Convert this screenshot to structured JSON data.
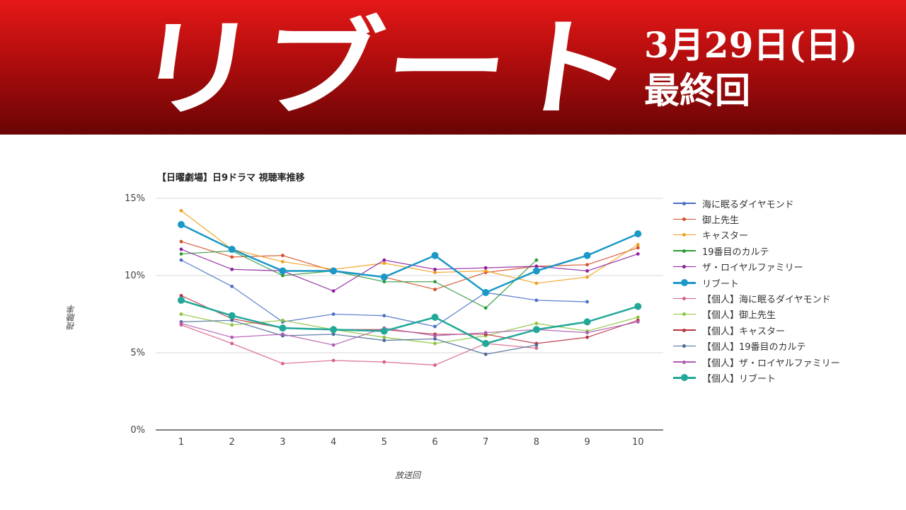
{
  "banner": {
    "title": "リブート",
    "date": "3月29日(日)",
    "subtitle": "最終回"
  },
  "chart_data": {
    "type": "line",
    "title": "【日曜劇場】日9ドラマ 視聴率推移",
    "xlabel": "放送回",
    "ylabel": "視聴率",
    "x": [
      1,
      2,
      3,
      4,
      5,
      6,
      7,
      8,
      9,
      10
    ],
    "ylim": [
      0,
      15
    ],
    "yticks": [
      "0%",
      "5%",
      "10%",
      "15%"
    ],
    "grid": true,
    "legend_position": "right",
    "series": [
      {
        "name": "海に眠るダイヤモンド",
        "color": "#4a6fc4",
        "marker": "small",
        "values": [
          11.0,
          9.3,
          7.0,
          7.5,
          7.4,
          6.7,
          8.9,
          8.4,
          8.3,
          null
        ]
      },
      {
        "name": "御上先生",
        "color": "#d4502a",
        "marker": "small",
        "values": [
          12.2,
          11.2,
          11.3,
          10.3,
          9.9,
          9.1,
          10.2,
          10.6,
          10.7,
          11.8
        ]
      },
      {
        "name": "キャスター",
        "color": "#f0a020",
        "marker": "small",
        "values": [
          14.2,
          11.7,
          10.9,
          10.4,
          10.8,
          10.2,
          10.3,
          9.5,
          9.9,
          12.0
        ]
      },
      {
        "name": "19番目のカルテ",
        "color": "#2e9a3a",
        "marker": "small",
        "values": [
          11.4,
          11.6,
          10.0,
          10.3,
          9.6,
          9.6,
          7.9,
          11.0,
          null,
          null
        ]
      },
      {
        "name": "ザ・ロイヤルファミリー",
        "color": "#8e1fa0",
        "marker": "small",
        "values": [
          11.7,
          10.4,
          10.3,
          9.0,
          11.0,
          10.4,
          10.5,
          10.6,
          10.3,
          11.4
        ]
      },
      {
        "name": "リブート",
        "color": "#1a98c6",
        "marker": "large",
        "values": [
          13.3,
          11.7,
          10.3,
          10.3,
          9.9,
          11.3,
          8.9,
          10.3,
          11.3,
          12.7
        ]
      },
      {
        "name": "【個人】海に眠るダイヤモンド",
        "color": "#d9608a",
        "marker": "small",
        "values": [
          6.8,
          5.6,
          4.3,
          4.5,
          4.4,
          4.2,
          5.6,
          5.3,
          null,
          null
        ]
      },
      {
        "name": "【個人】御上先生",
        "color": "#8cc43a",
        "marker": "small",
        "values": [
          7.5,
          6.8,
          7.1,
          6.5,
          6.0,
          5.6,
          6.1,
          6.9,
          6.4,
          7.3
        ]
      },
      {
        "name": "【個人】キャスター",
        "color": "#b8323f",
        "marker": "small",
        "values": [
          8.7,
          7.2,
          6.6,
          6.5,
          6.5,
          6.2,
          6.2,
          5.6,
          6.0,
          7.1
        ]
      },
      {
        "name": "【個人】19番目のカルテ",
        "color": "#4a6a9a",
        "marker": "small",
        "values": [
          7.0,
          7.1,
          6.1,
          6.2,
          5.8,
          5.9,
          4.9,
          5.5,
          null,
          null
        ]
      },
      {
        "name": "【個人】ザ・ロイヤルファミリー",
        "color": "#b05cb0",
        "marker": "small",
        "values": [
          6.9,
          6.0,
          6.2,
          5.5,
          6.6,
          6.1,
          6.3,
          6.5,
          6.3,
          7.0
        ]
      },
      {
        "name": "【個人】リブート",
        "color": "#22a898",
        "marker": "large",
        "values": [
          8.4,
          7.4,
          6.6,
          6.5,
          6.4,
          7.3,
          5.6,
          6.5,
          7.0,
          8.0
        ]
      }
    ]
  }
}
